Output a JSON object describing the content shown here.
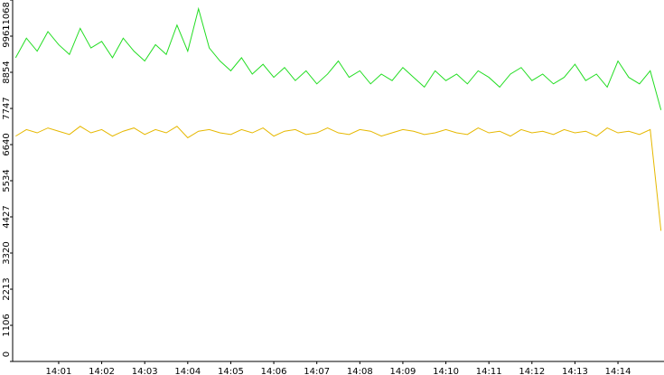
{
  "chart_data": {
    "type": "line",
    "x": [
      0,
      0.25,
      0.5,
      0.75,
      1,
      1.25,
      1.5,
      1.75,
      2,
      2.25,
      2.5,
      2.75,
      3,
      3.25,
      3.5,
      3.75,
      4,
      4.25,
      4.5,
      4.75,
      5,
      5.25,
      5.5,
      5.75,
      6,
      6.25,
      6.5,
      6.75,
      7,
      7.25,
      7.5,
      7.75,
      8,
      8.25,
      8.5,
      8.75,
      9,
      9.25,
      9.5,
      9.75,
      10,
      10.25,
      10.5,
      10.75,
      11,
      11.25,
      11.5,
      11.75,
      12,
      12.25,
      12.5,
      12.75,
      13,
      13.25,
      13.5,
      13.75,
      14,
      14.25,
      14.5,
      14.75,
      15
    ],
    "series": [
      {
        "color": "#22dd22",
        "values": [
          9300,
          9900,
          9500,
          10100,
          9700,
          9400,
          10200,
          9600,
          9800,
          9300,
          9900,
          9500,
          9200,
          9700,
          9400,
          10300,
          9500,
          10800,
          9600,
          9200,
          8900,
          9300,
          8800,
          9100,
          8700,
          9000,
          8600,
          8900,
          8500,
          8800,
          9200,
          8700,
          8900,
          8500,
          8800,
          8600,
          9000,
          8700,
          8400,
          8900,
          8600,
          8800,
          8500,
          8900,
          8700,
          8400,
          8800,
          9000,
          8600,
          8800,
          8500,
          8700,
          9100,
          8600,
          8800,
          8400,
          9200,
          8700,
          8500,
          8900,
          7700
        ]
      },
      {
        "color": "#e6b800",
        "values": [
          6900,
          7100,
          7000,
          7150,
          7050,
          6950,
          7200,
          7000,
          7100,
          6900,
          7050,
          7150,
          6950,
          7100,
          7000,
          7200,
          6850,
          7050,
          7100,
          7000,
          6950,
          7100,
          7000,
          7150,
          6900,
          7050,
          7100,
          6950,
          7000,
          7150,
          7000,
          6950,
          7100,
          7050,
          6900,
          7000,
          7100,
          7050,
          6950,
          7000,
          7100,
          7000,
          6950,
          7150,
          7000,
          7050,
          6900,
          7100,
          7000,
          7050,
          6950,
          7100,
          7000,
          7050,
          6900,
          7150,
          7000,
          7050,
          6950,
          7100,
          4000
        ]
      }
    ],
    "xlim": [
      -0.07,
      15.07
    ],
    "xticks": [
      {
        "value": 1,
        "label": "14:01"
      },
      {
        "value": 2,
        "label": "14:02"
      },
      {
        "value": 3,
        "label": "14:03"
      },
      {
        "value": 4,
        "label": "14:04"
      },
      {
        "value": 5,
        "label": "14:05"
      },
      {
        "value": 6,
        "label": "14:06"
      },
      {
        "value": 7,
        "label": "14:07"
      },
      {
        "value": 8,
        "label": "14:08"
      },
      {
        "value": 9,
        "label": "14:09"
      },
      {
        "value": 10,
        "label": "14:10"
      },
      {
        "value": 11,
        "label": "14:11"
      },
      {
        "value": 12,
        "label": "14:12"
      },
      {
        "value": 13,
        "label": "14:13"
      },
      {
        "value": 14,
        "label": "14:14"
      }
    ],
    "ylim": [
      0,
      11068
    ],
    "yticks": [
      0,
      1106,
      2213,
      3320,
      4427,
      5534,
      6640,
      7747,
      8854,
      9961,
      11068
    ]
  }
}
